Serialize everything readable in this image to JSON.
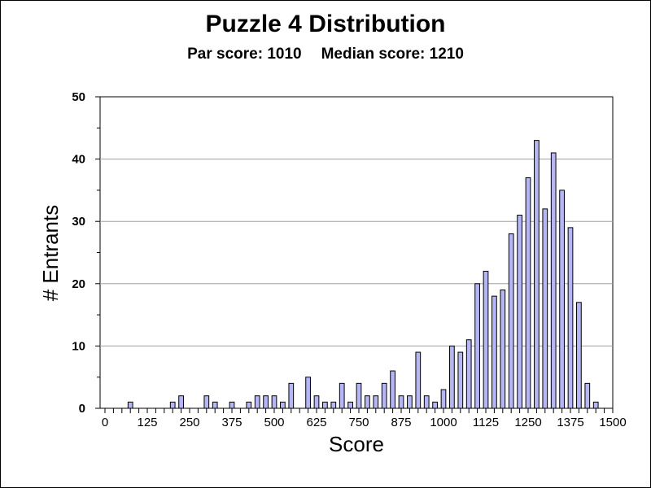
{
  "chart_data": {
    "type": "bar",
    "title": "Puzzle 4 Distribution",
    "subtitle": {
      "par_label": "Par score: 1010",
      "median_label": "Median score: 1210"
    },
    "xlabel": "Score",
    "ylabel": "# Entrants",
    "xlim": [
      0,
      1500
    ],
    "ylim": [
      0,
      50
    ],
    "x_ticks": [
      0,
      125,
      250,
      375,
      500,
      625,
      750,
      875,
      1000,
      1125,
      1250,
      1375,
      1500
    ],
    "y_ticks": [
      0,
      10,
      20,
      30,
      40,
      50
    ],
    "grid": "horizontal",
    "bin_width": 25,
    "x": [
      75,
      200,
      225,
      300,
      325,
      375,
      425,
      450,
      475,
      500,
      525,
      550,
      600,
      625,
      650,
      675,
      700,
      725,
      750,
      775,
      800,
      825,
      850,
      875,
      900,
      925,
      950,
      975,
      1000,
      1025,
      1050,
      1075,
      1100,
      1125,
      1150,
      1175,
      1200,
      1225,
      1250,
      1275,
      1300,
      1325,
      1350,
      1375,
      1400,
      1425,
      1450
    ],
    "values": [
      1,
      1,
      2,
      2,
      1,
      1,
      1,
      2,
      2,
      2,
      1,
      4,
      5,
      2,
      1,
      1,
      4,
      1,
      4,
      2,
      2,
      4,
      6,
      2,
      2,
      9,
      2,
      1,
      3,
      10,
      9,
      11,
      20,
      22,
      18,
      19,
      28,
      31,
      37,
      43,
      32,
      41,
      35,
      29,
      17,
      4,
      1
    ],
    "colors": {
      "bar_fill": "#b6b6f5",
      "bar_stroke": "#000000",
      "grid": "#a0a0a0"
    }
  }
}
